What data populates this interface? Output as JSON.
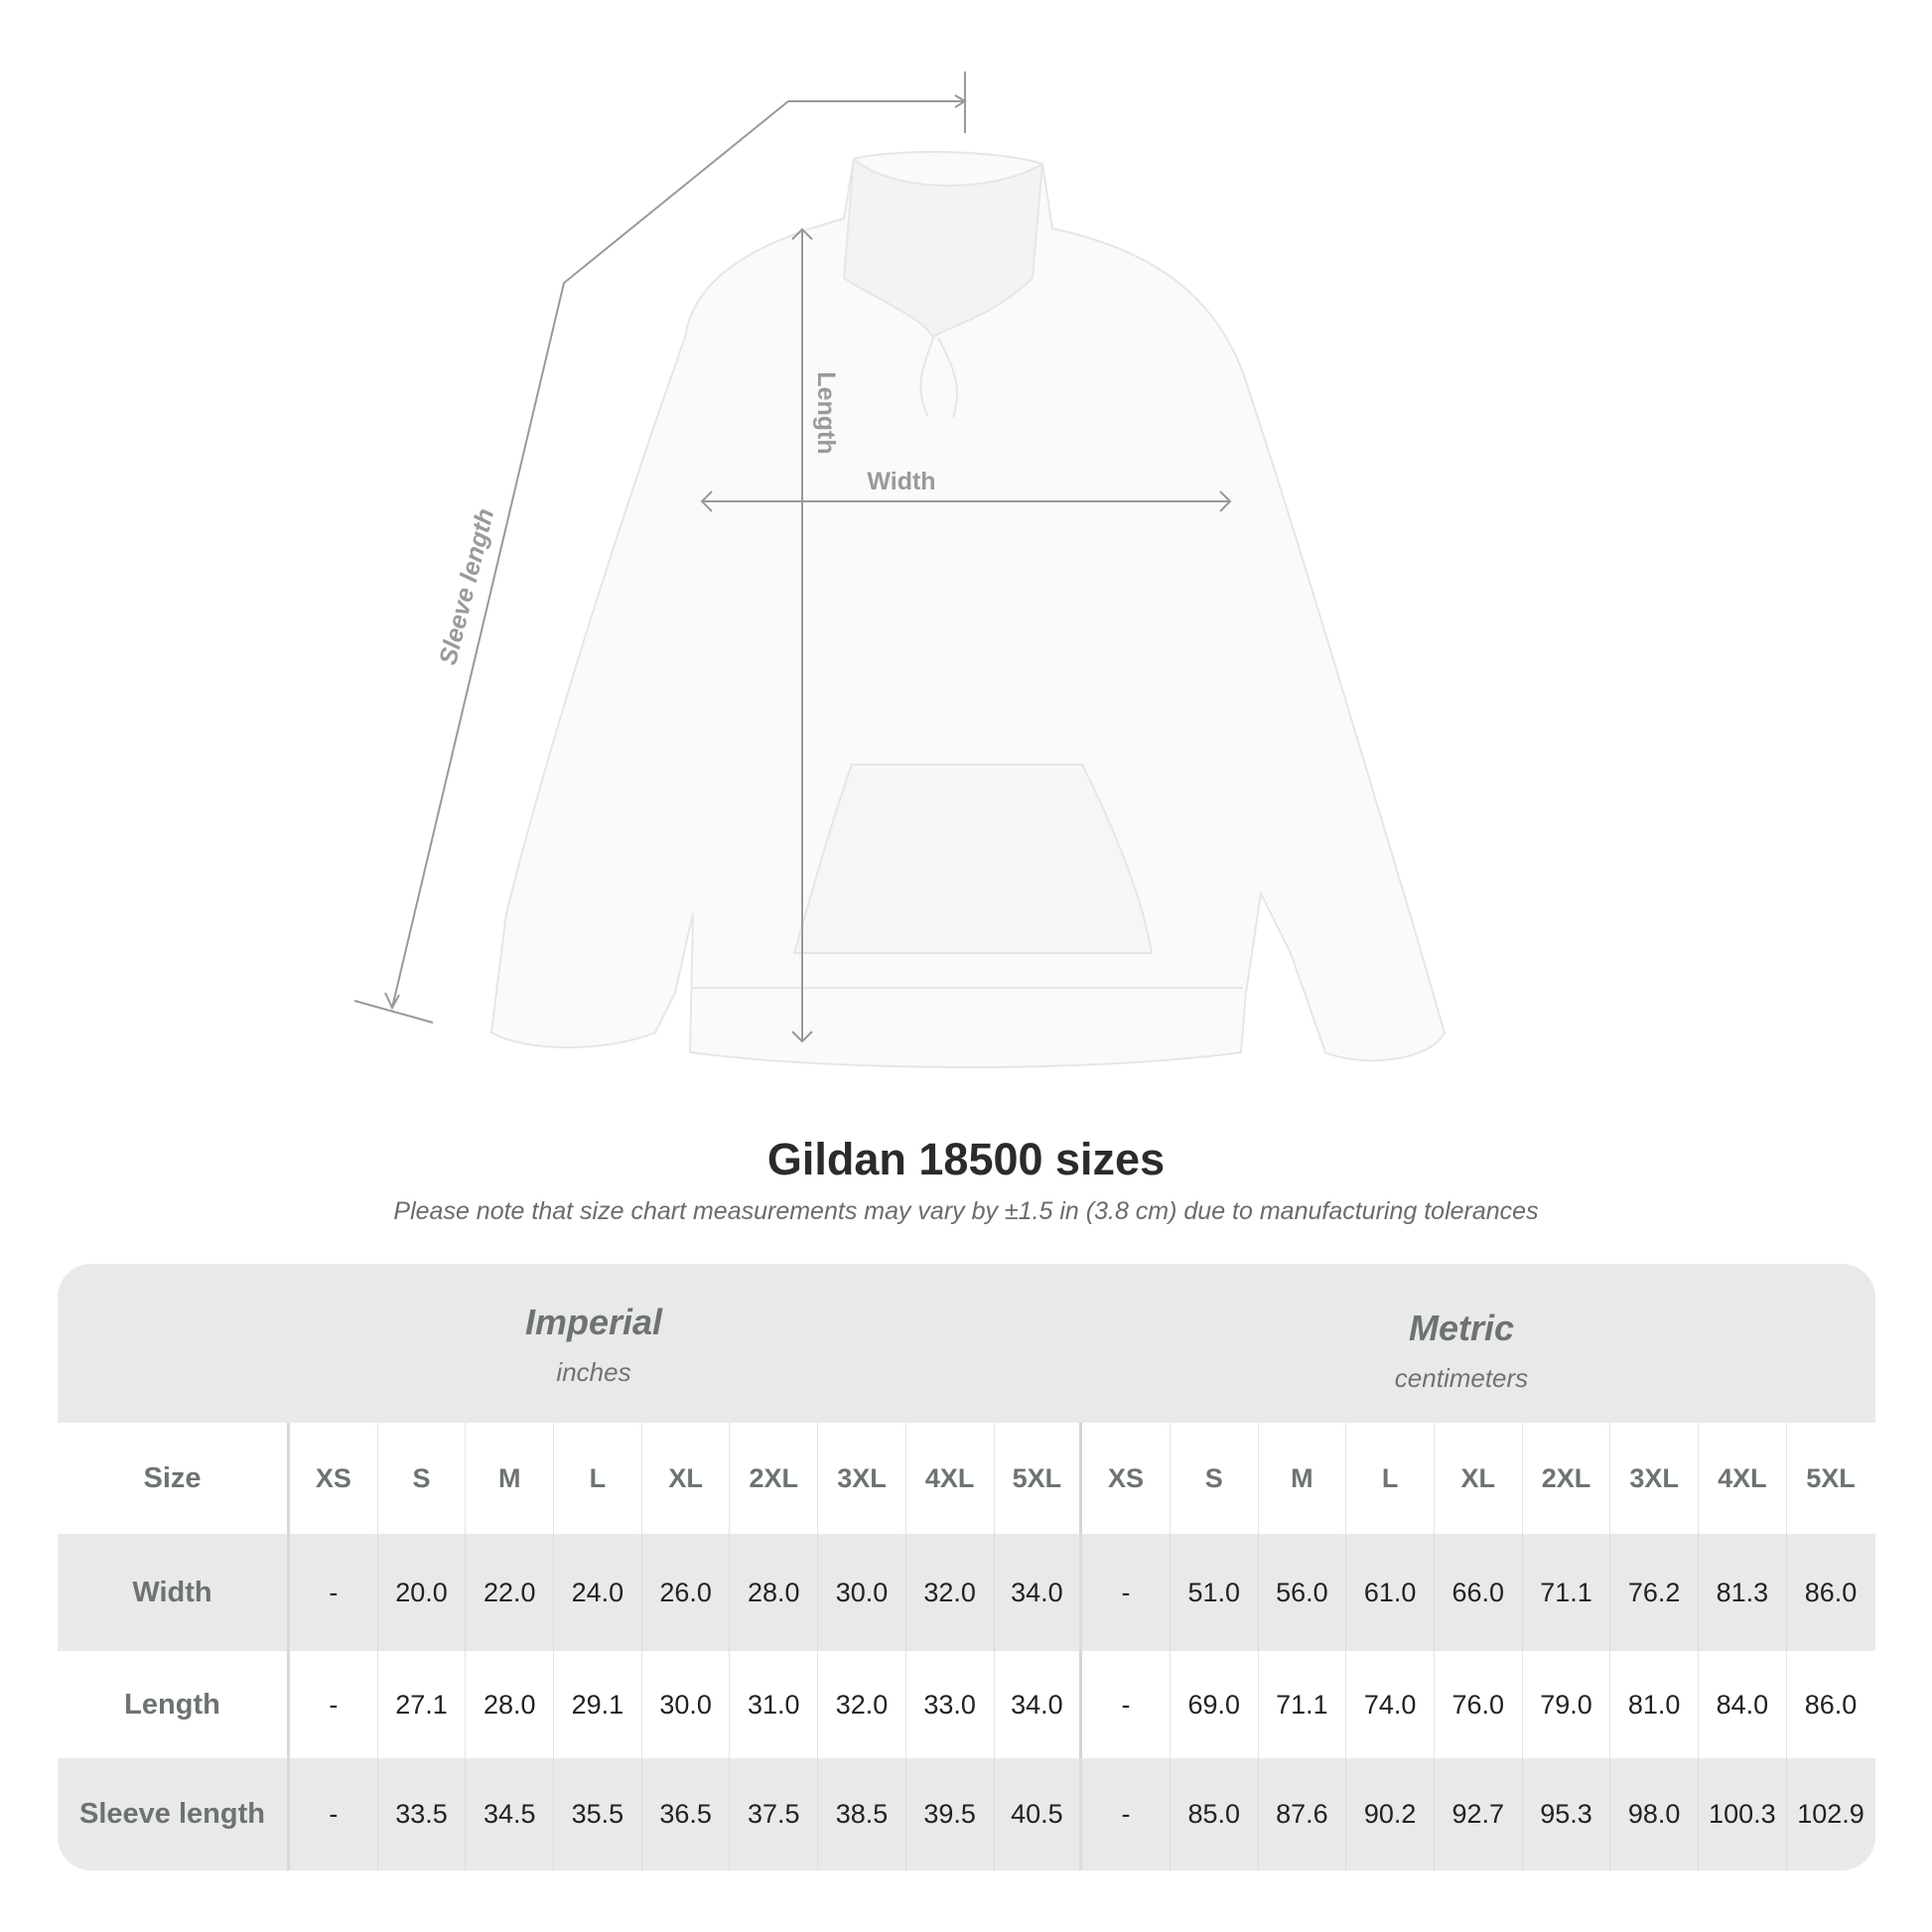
{
  "diagram": {
    "labels": {
      "sleeve": "Sleeve length",
      "length": "Length",
      "width": "Width"
    },
    "garment": "hoodie"
  },
  "title": "Gildan 18500 sizes",
  "subtitle": "Please note that size chart measurements may vary by ±1.5 in (3.8 cm) due to manufacturing tolerances",
  "table": {
    "imperial": {
      "name": "Imperial",
      "unit": "inches"
    },
    "metric": {
      "name": "Metric",
      "unit": "centimeters"
    },
    "rows": [
      {
        "label": "Size",
        "imperial": [
          "XS",
          "S",
          "M",
          "L",
          "XL",
          "2XL",
          "3XL",
          "4XL",
          "5XL"
        ],
        "metric": [
          "XS",
          "S",
          "M",
          "L",
          "XL",
          "2XL",
          "3XL",
          "4XL",
          "5XL"
        ]
      },
      {
        "label": "Width",
        "imperial": [
          "-",
          "20.0",
          "22.0",
          "24.0",
          "26.0",
          "28.0",
          "30.0",
          "32.0",
          "34.0"
        ],
        "metric": [
          "-",
          "51.0",
          "56.0",
          "61.0",
          "66.0",
          "71.1",
          "76.2",
          "81.3",
          "86.0"
        ]
      },
      {
        "label": "Length",
        "imperial": [
          "-",
          "27.1",
          "28.0",
          "29.1",
          "30.0",
          "31.0",
          "32.0",
          "33.0",
          "34.0"
        ],
        "metric": [
          "-",
          "69.0",
          "71.1",
          "74.0",
          "76.0",
          "79.0",
          "81.0",
          "84.0",
          "86.0"
        ]
      },
      {
        "label": "Sleeve length",
        "imperial": [
          "-",
          "33.5",
          "34.5",
          "35.5",
          "36.5",
          "37.5",
          "38.5",
          "39.5",
          "40.5"
        ],
        "metric": [
          "-",
          "85.0",
          "87.6",
          "90.2",
          "92.7",
          "95.3",
          "98.0",
          "100.3",
          "102.9"
        ]
      }
    ]
  }
}
